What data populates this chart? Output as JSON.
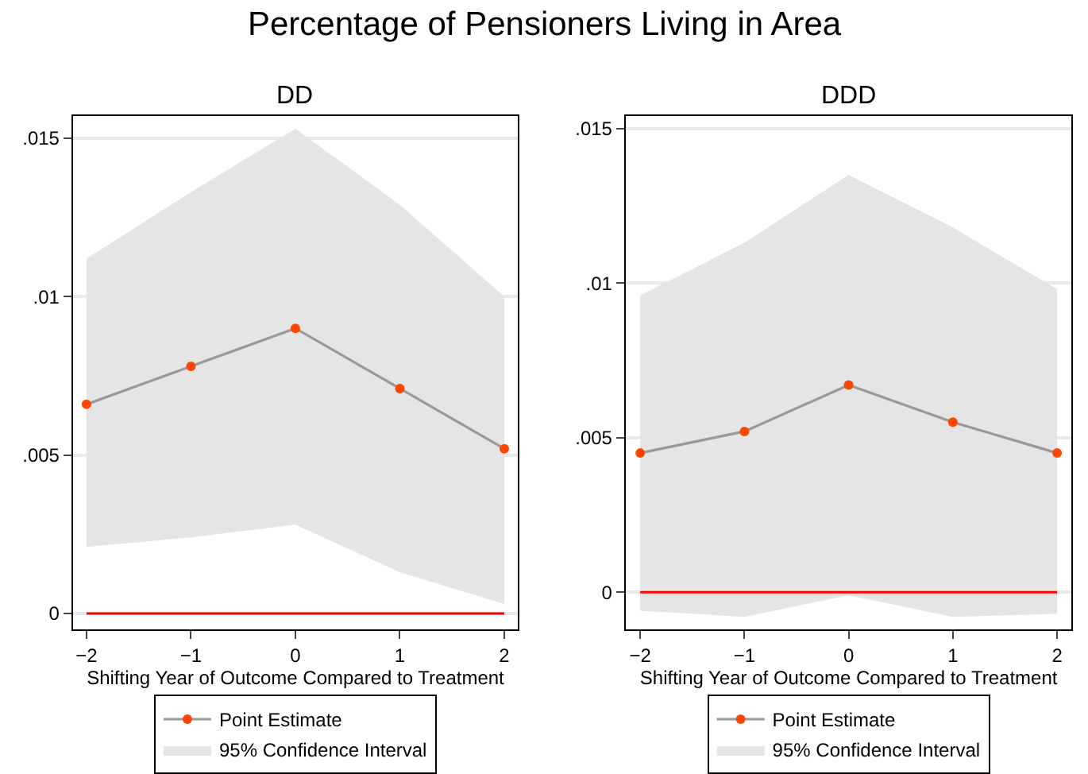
{
  "chart_data": [
    {
      "type": "line",
      "title": "DD",
      "annotations": [
        "Percentage of Pensioners Living in Area"
      ],
      "xlabel": "Shifting Year of Outcome Compared to Treatment",
      "x": [
        -2,
        -1,
        0,
        1,
        2
      ],
      "series": [
        {
          "name": "Point Estimate",
          "color": "#999999",
          "colors": [
            "#ff4500",
            "#ff4500",
            "#ff4500",
            "#ff4500",
            "#ff4500"
          ],
          "values": [
            0.0066,
            0.0078,
            0.009,
            0.0071,
            0.0052
          ],
          "lower": [
            0.0021,
            0.0024,
            0.0028,
            0.0013,
            0.0003
          ],
          "upper": [
            0.0112,
            0.0133,
            0.0153,
            0.0129,
            0.01
          ]
        },
        {
          "name": "95% Confidence Interval",
          "type": "area",
          "color": "#e5e5e5",
          "values": [
            null,
            null,
            null,
            null,
            null
          ]
        }
      ],
      "xlim": [
        -2.13,
        2.13
      ],
      "ylim": [
        -0.0005,
        0.0157
      ],
      "xticks": [
        -2,
        -1,
        0,
        1,
        2
      ],
      "yticks": [
        0,
        {
          "value": 0.005,
          "label": ".005"
        },
        {
          "value": 0.01,
          "label": ".01"
        },
        {
          "value": 0.015,
          "label": ".015"
        }
      ],
      "ref_lines": [
        {
          "axis": "y",
          "value": 0,
          "color": "#ff0000"
        }
      ],
      "grid": "y",
      "legend": "bottom",
      "marker": "circle",
      "line_style": "solid"
    },
    {
      "type": "line",
      "title": "DDD",
      "xlabel": "Shifting Year of Outcome Compared to Treatment",
      "x": [
        -2,
        -1,
        0,
        1,
        2
      ],
      "series": [
        {
          "name": "Point Estimate",
          "color": "#999999",
          "colors": [
            "#ff4500",
            "#ff4500",
            "#ff4500",
            "#ff4500",
            "#ff4500"
          ],
          "values": [
            0.0045,
            0.0052,
            0.0067,
            0.0055,
            0.0045
          ],
          "lower": [
            -0.0006,
            -0.0008,
            -0.0001,
            -0.0008,
            -0.0007
          ],
          "upper": [
            0.0096,
            0.0113,
            0.0135,
            0.0118,
            0.0098
          ]
        },
        {
          "name": "95% Confidence Interval",
          "type": "area",
          "color": "#e5e5e5",
          "values": [
            null,
            null,
            null,
            null,
            null
          ]
        }
      ],
      "xlim": [
        -2.14,
        2.14
      ],
      "ylim": [
        -0.0012,
        0.0154
      ],
      "xticks": [
        -2,
        -1,
        0,
        1,
        2
      ],
      "yticks": [
        0,
        {
          "value": 0.005,
          "label": ".005"
        },
        {
          "value": 0.01,
          "label": ".01"
        },
        {
          "value": 0.015,
          "label": ".015"
        }
      ],
      "ref_lines": [
        {
          "axis": "y",
          "value": 0,
          "color": "#ff0000"
        }
      ],
      "grid": "y",
      "legend": "bottom",
      "marker": "circle",
      "line_style": "solid"
    }
  ]
}
